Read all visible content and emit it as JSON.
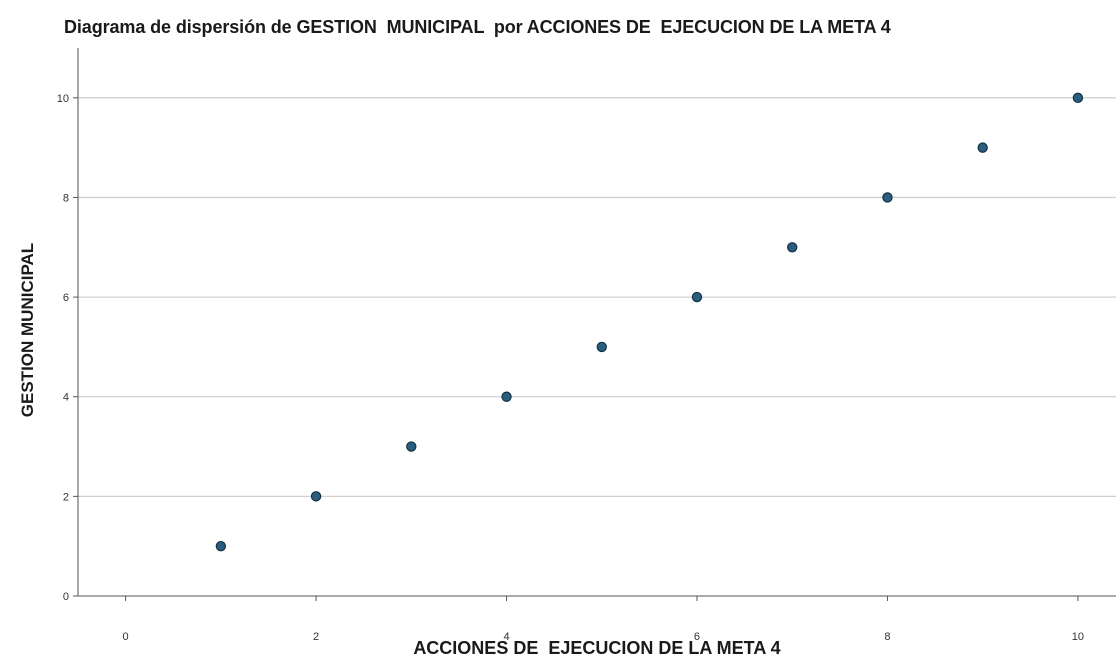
{
  "chart_data": {
    "type": "scatter",
    "title": "Diagrama de dispersión de GESTION  MUNICIPAL  por ACCIONES DE  EJECUCION DE LA META 4",
    "xlabel": "ACCIONES DE  EJECUCION DE LA META 4",
    "ylabel": "GESTION MUNICIPAL",
    "xlim": [
      -0.5,
      10.4
    ],
    "ylim": [
      0,
      11
    ],
    "xticks": [
      "0",
      "2",
      "4",
      "6",
      "8",
      "10"
    ],
    "yticks": [
      "0",
      "2",
      "4",
      "6",
      "8",
      "10"
    ],
    "grid": "horizontal",
    "series": [
      {
        "x": [
          1,
          2,
          3,
          4,
          5,
          6,
          7,
          8,
          9,
          10
        ],
        "y": [
          1,
          2,
          3,
          4,
          5,
          6,
          7,
          8,
          9,
          10
        ]
      }
    ],
    "colors": {
      "marker": "#2b5d7c",
      "marker_edge": "#123347",
      "grid": "#d0d0d0",
      "axis": "#555555"
    }
  }
}
